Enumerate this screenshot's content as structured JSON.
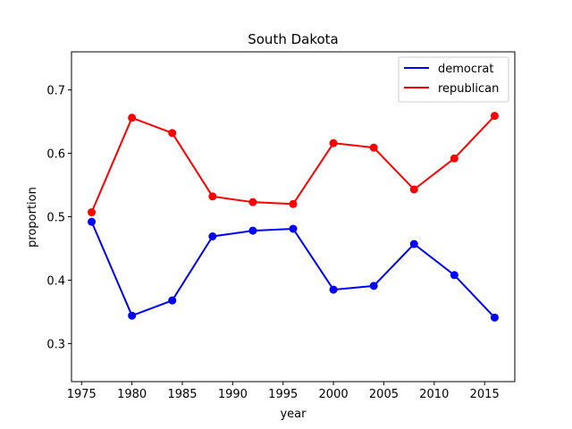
{
  "chart_data": {
    "type": "line",
    "title": "South Dakota",
    "xlabel": "year",
    "ylabel": "proportion",
    "xlim": [
      1974,
      2018
    ],
    "ylim": [
      0.24,
      0.76
    ],
    "xticks": [
      1975,
      1980,
      1985,
      1990,
      1995,
      2000,
      2005,
      2010,
      2015
    ],
    "yticks": [
      0.3,
      0.4,
      0.5,
      0.6,
      0.7
    ],
    "xtick_labels": [
      "1975",
      "1980",
      "1985",
      "1990",
      "1995",
      "2000",
      "2005",
      "2010",
      "2015"
    ],
    "ytick_labels": [
      "0.3",
      "0.4",
      "0.5",
      "0.6",
      "0.7"
    ],
    "grid": false,
    "legend_position": "top-right",
    "x": [
      1976,
      1980,
      1984,
      1988,
      1992,
      1996,
      2000,
      2004,
      2008,
      2012,
      2016
    ],
    "series": [
      {
        "name": "democrat",
        "color": "#0000ff",
        "values": [
          0.492,
          0.344,
          0.368,
          0.469,
          0.478,
          0.481,
          0.385,
          0.391,
          0.457,
          0.408,
          0.341
        ]
      },
      {
        "name": "republican",
        "color": "#ff0000",
        "values": [
          0.507,
          0.656,
          0.632,
          0.532,
          0.523,
          0.52,
          0.616,
          0.609,
          0.543,
          0.592,
          0.659
        ]
      }
    ]
  }
}
